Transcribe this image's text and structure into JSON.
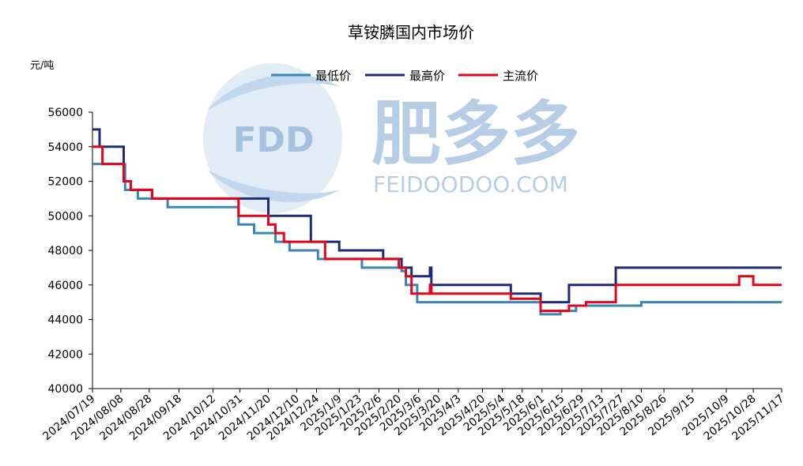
{
  "chart_data": {
    "type": "line",
    "title": "草铵膦国内市场价",
    "ylabel": "元/吨",
    "xlabel": "",
    "ylim": [
      40000,
      56000
    ],
    "yticks": [
      40000,
      42000,
      44000,
      46000,
      48000,
      50000,
      52000,
      54000,
      56000
    ],
    "grid": false,
    "legend": "top",
    "x_tick_labels": [
      "2024/07/19",
      "2024/08/08",
      "2024/08/28",
      "2024/09/18",
      "2024/10/12",
      "2024/10/31",
      "2024/11/20",
      "2024/12/10",
      "2024/12/24",
      "2025/1/9",
      "2025/1/23",
      "2025/2/6",
      "2025/2/20",
      "2025/3/6",
      "2025/3/20",
      "2025/4/3",
      "2025/4/20",
      "2025/5/4",
      "2025/5/18",
      "2025/6/1",
      "2025/6/15",
      "2025/6/29",
      "2025/7/13",
      "2025/7/27",
      "2025/8/10",
      "2025/8/26",
      "2025/9/15",
      "2025/10/9",
      "2025/10/28",
      "2025/11/17"
    ],
    "series": [
      {
        "name": "最低价",
        "color": "#3a86b4",
        "points": [
          [
            "2024/07/19",
            53000
          ],
          [
            "2024/08/11",
            53000
          ],
          [
            "2024/08/11",
            51500
          ],
          [
            "2024/08/20",
            51500
          ],
          [
            "2024/08/20",
            51000
          ],
          [
            "2024/09/10",
            51000
          ],
          [
            "2024/09/10",
            50500
          ],
          [
            "2024/10/30",
            50500
          ],
          [
            "2024/10/30",
            49500
          ],
          [
            "2024/11/10",
            49500
          ],
          [
            "2024/11/10",
            49000
          ],
          [
            "2024/11/25",
            49000
          ],
          [
            "2024/11/25",
            48500
          ],
          [
            "2024/12/05",
            48500
          ],
          [
            "2024/12/05",
            48000
          ],
          [
            "2024/12/25",
            48000
          ],
          [
            "2024/12/25",
            47500
          ],
          [
            "2025/01/25",
            47500
          ],
          [
            "2025/01/25",
            47000
          ],
          [
            "2025/02/22",
            47000
          ],
          [
            "2025/02/22",
            46800
          ],
          [
            "2025/02/25",
            46800
          ],
          [
            "2025/02/25",
            46000
          ],
          [
            "2025/03/05",
            46000
          ],
          [
            "2025/03/05",
            45000
          ],
          [
            "2025/05/31",
            45000
          ],
          [
            "2025/05/31",
            44300
          ],
          [
            "2025/06/14",
            44300
          ],
          [
            "2025/06/14",
            44500
          ],
          [
            "2025/06/25",
            44500
          ],
          [
            "2025/06/25",
            44800
          ],
          [
            "2025/08/10",
            44800
          ],
          [
            "2025/08/10",
            45000
          ],
          [
            "2025/11/17",
            45000
          ]
        ]
      },
      {
        "name": "最高价",
        "color": "#1f2a7c",
        "points": [
          [
            "2024/07/19",
            55000
          ],
          [
            "2024/07/24",
            55000
          ],
          [
            "2024/07/24",
            54000
          ],
          [
            "2024/08/10",
            54000
          ],
          [
            "2024/08/10",
            52000
          ],
          [
            "2024/08/15",
            52000
          ],
          [
            "2024/08/15",
            51500
          ],
          [
            "2024/08/30",
            51500
          ],
          [
            "2024/08/30",
            51000
          ],
          [
            "2024/11/20",
            51000
          ],
          [
            "2024/11/20",
            50000
          ],
          [
            "2024/12/20",
            50000
          ],
          [
            "2024/12/20",
            48500
          ],
          [
            "2025/01/09",
            48500
          ],
          [
            "2025/01/09",
            48000
          ],
          [
            "2025/02/09",
            48000
          ],
          [
            "2025/02/09",
            47500
          ],
          [
            "2025/02/22",
            47500
          ],
          [
            "2025/02/22",
            47000
          ],
          [
            "2025/03/01",
            47000
          ],
          [
            "2025/03/01",
            46500
          ],
          [
            "2025/03/14",
            46500
          ],
          [
            "2025/03/14",
            47000
          ],
          [
            "2025/03/15",
            47000
          ],
          [
            "2025/03/15",
            46000
          ],
          [
            "2025/05/10",
            46000
          ],
          [
            "2025/05/10",
            45500
          ],
          [
            "2025/05/31",
            45500
          ],
          [
            "2025/05/31",
            45000
          ],
          [
            "2025/06/20",
            45000
          ],
          [
            "2025/06/20",
            46000
          ],
          [
            "2025/07/23",
            46000
          ],
          [
            "2025/07/23",
            47000
          ],
          [
            "2025/11/17",
            47000
          ]
        ]
      },
      {
        "name": "主流价",
        "color": "#e3061b",
        "points": [
          [
            "2024/07/19",
            54000
          ],
          [
            "2024/07/26",
            54000
          ],
          [
            "2024/07/26",
            53000
          ],
          [
            "2024/08/10",
            53000
          ],
          [
            "2024/08/10",
            52000
          ],
          [
            "2024/08/15",
            52000
          ],
          [
            "2024/08/15",
            51500
          ],
          [
            "2024/08/30",
            51500
          ],
          [
            "2024/08/30",
            51000
          ],
          [
            "2024/10/30",
            51000
          ],
          [
            "2024/10/30",
            50000
          ],
          [
            "2024/11/20",
            50000
          ],
          [
            "2024/11/20",
            49500
          ],
          [
            "2024/11/25",
            49500
          ],
          [
            "2024/11/25",
            49000
          ],
          [
            "2024/12/01",
            49000
          ],
          [
            "2024/12/01",
            48500
          ],
          [
            "2024/12/30",
            48500
          ],
          [
            "2024/12/30",
            47500
          ],
          [
            "2025/02/20",
            47500
          ],
          [
            "2025/02/20",
            47000
          ],
          [
            "2025/02/25",
            47000
          ],
          [
            "2025/02/25",
            46500
          ],
          [
            "2025/03/01",
            46500
          ],
          [
            "2025/03/01",
            45500
          ],
          [
            "2025/03/14",
            45500
          ],
          [
            "2025/03/14",
            46000
          ],
          [
            "2025/03/15",
            46000
          ],
          [
            "2025/03/15",
            45500
          ],
          [
            "2025/05/10",
            45500
          ],
          [
            "2025/05/10",
            45200
          ],
          [
            "2025/05/31",
            45200
          ],
          [
            "2025/05/31",
            44500
          ],
          [
            "2025/06/20",
            44500
          ],
          [
            "2025/06/20",
            44800
          ],
          [
            "2025/07/02",
            44800
          ],
          [
            "2025/07/02",
            45000
          ],
          [
            "2025/07/23",
            45000
          ],
          [
            "2025/07/23",
            46000
          ],
          [
            "2025/10/18",
            46000
          ],
          [
            "2025/10/18",
            46500
          ],
          [
            "2025/10/28",
            46500
          ],
          [
            "2025/10/28",
            46000
          ],
          [
            "2025/11/17",
            46000
          ]
        ]
      }
    ]
  },
  "watermark": {
    "logo_text": "FDD",
    "cn_text": "肥多多",
    "en_text": "FEIDOODOO.COM"
  }
}
